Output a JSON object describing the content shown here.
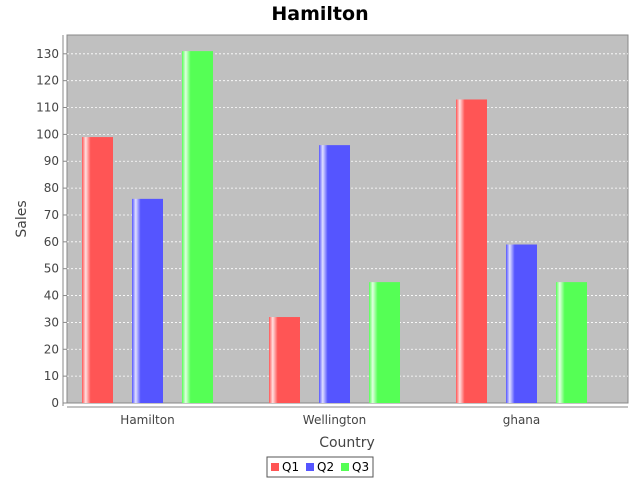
{
  "chart_data": {
    "type": "bar",
    "title": "Hamilton",
    "xlabel": "Country",
    "ylabel": "Sales",
    "categories": [
      "Hamilton",
      "Wellington",
      "ghana"
    ],
    "series": [
      {
        "name": "Q1",
        "values": [
          99,
          32,
          113
        ],
        "color": "#ff5555"
      },
      {
        "name": "Q2",
        "values": [
          76,
          96,
          59
        ],
        "color": "#5555ff"
      },
      {
        "name": "Q3",
        "values": [
          131,
          45,
          45
        ],
        "color": "#55ff55"
      }
    ],
    "ylim": [
      0,
      137
    ],
    "yticks": [
      0,
      10,
      20,
      30,
      40,
      50,
      60,
      70,
      80,
      90,
      100,
      110,
      120,
      130
    ],
    "grid": true,
    "legend_position": "bottom",
    "plot_background": "#c0c0c0"
  }
}
